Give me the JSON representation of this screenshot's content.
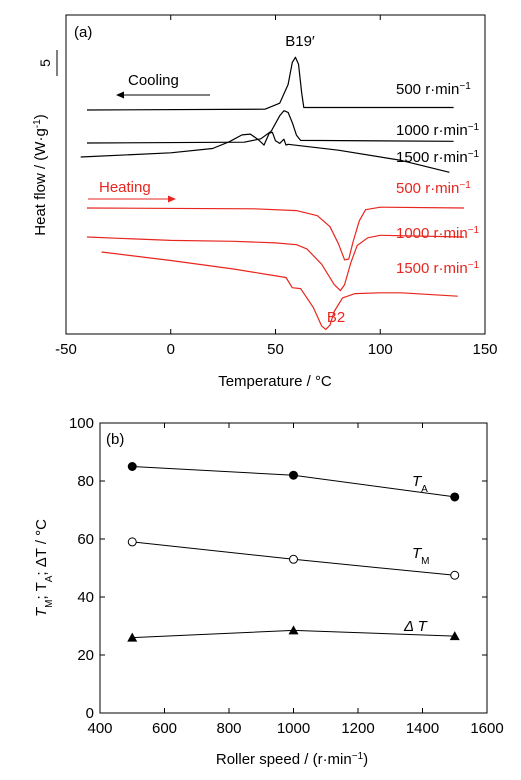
{
  "chart_data": [
    {
      "panel": "(a)",
      "type": "line",
      "xlabel_main": "Temperature / ",
      "xlabel_unit": "°C",
      "ylabel_main": "Heat flow / (W·g",
      "ylabel_sup": "-1",
      "ylabel_end": ")",
      "xlim": [
        -50,
        150
      ],
      "x_ticks": [
        "-50",
        "0",
        "50",
        "100",
        "150"
      ],
      "scale_bar_label": "5",
      "cooling_label": "Cooling",
      "heating_label": "Heating",
      "peak_labels": {
        "cooling": "B19′",
        "heating": "B2"
      },
      "colors": {
        "cooling": "#000000",
        "heating": "#e8261f"
      },
      "series": [
        {
          "name": "500 r·min",
          "sup": "−1",
          "group": "cooling",
          "points": [
            [
              -40,
              0
            ],
            [
              45,
              0.1
            ],
            [
              52,
              0.8
            ],
            [
              56,
              3.0
            ],
            [
              58,
              5.6
            ],
            [
              59.5,
              6.2
            ],
            [
              61,
              5.4
            ],
            [
              62.5,
              2.0
            ],
            [
              63.5,
              0.3
            ],
            [
              135,
              0.3
            ]
          ]
        },
        {
          "name": "1000 r·min",
          "sup": "−1",
          "group": "cooling",
          "points": [
            [
              -40,
              0
            ],
            [
              35,
              0.1
            ],
            [
              43,
              0.5
            ],
            [
              48,
              1.4
            ],
            [
              52,
              3.2
            ],
            [
              54,
              3.8
            ],
            [
              56,
              3.6
            ],
            [
              58,
              2.4
            ],
            [
              60,
              0.9
            ],
            [
              62,
              0.3
            ],
            [
              135,
              0.2
            ]
          ]
        },
        {
          "name": "1500 r·min",
          "sup": "−1",
          "group": "cooling",
          "points": [
            [
              -43,
              0
            ],
            [
              0,
              0.5
            ],
            [
              20,
              1.0
            ],
            [
              28,
              1.8
            ],
            [
              34,
              2.6
            ],
            [
              38,
              2.7
            ],
            [
              42,
              2.0
            ],
            [
              44.5,
              1.4
            ],
            [
              47,
              2.8
            ],
            [
              48.5,
              2.9
            ],
            [
              50,
              1.9
            ],
            [
              52,
              1.6
            ],
            [
              54,
              2.1
            ],
            [
              55,
              1.4
            ],
            [
              56,
              1.5
            ],
            [
              80,
              0.8
            ],
            [
              110,
              -0.4
            ],
            [
              133,
              -1.8
            ]
          ]
        },
        {
          "name": "500 r·min",
          "sup": "−1",
          "group": "heating",
          "points": [
            [
              -40,
              0
            ],
            [
              40,
              -0.1
            ],
            [
              60,
              -0.3
            ],
            [
              70,
              -0.9
            ],
            [
              76,
              -2.2
            ],
            [
              80,
              -4.2
            ],
            [
              83,
              -6.1
            ],
            [
              85,
              -6.0
            ],
            [
              87,
              -4.0
            ],
            [
              90,
              -1.5
            ],
            [
              93,
              -0.2
            ],
            [
              100,
              0.1
            ],
            [
              140,
              0
            ]
          ]
        },
        {
          "name": "1000 r·min",
          "sup": "−1",
          "group": "heating",
          "points": [
            [
              -40,
              0
            ],
            [
              0,
              -0.4
            ],
            [
              30,
              -0.5
            ],
            [
              50,
              -0.7
            ],
            [
              60,
              -0.9
            ],
            [
              65,
              -1.4
            ],
            [
              72,
              -3.2
            ],
            [
              78,
              -5.6
            ],
            [
              81,
              -6.3
            ],
            [
              83,
              -5.6
            ],
            [
              86,
              -3.0
            ],
            [
              89,
              -1.0
            ],
            [
              94,
              -0.1
            ],
            [
              100,
              0.2
            ],
            [
              140,
              0
            ]
          ]
        },
        {
          "name": "1500 r·min",
          "sup": "−1",
          "group": "heating",
          "points": [
            [
              -33,
              0
            ],
            [
              0,
              -1.0
            ],
            [
              30,
              -2.0
            ],
            [
              45,
              -2.6
            ],
            [
              55,
              -3.0
            ],
            [
              58,
              -4.2
            ],
            [
              62,
              -4.3
            ],
            [
              68,
              -6.5
            ],
            [
              72,
              -8.7
            ],
            [
              74,
              -9.1
            ],
            [
              76,
              -8.6
            ],
            [
              78,
              -7.0
            ],
            [
              82,
              -5.4
            ],
            [
              88,
              -4.9
            ],
            [
              100,
              -4.8
            ],
            [
              110,
              -4.8
            ],
            [
              137,
              -5.2
            ]
          ]
        }
      ]
    },
    {
      "panel": "(b)",
      "type": "line",
      "xlabel_main": "Roller speed / (r·min",
      "xlabel_sup": "−1",
      "xlabel_end": ")",
      "xlim": [
        400,
        1600
      ],
      "ylim": [
        0,
        100
      ],
      "x_ticks": [
        400,
        600,
        800,
        1000,
        1200,
        1400,
        1600
      ],
      "y_ticks": [
        0,
        20,
        40,
        60,
        80,
        100
      ],
      "ylabel_parts": [
        "T",
        "M",
        "; T",
        "A",
        "; ΔT / °C"
      ],
      "series": [
        {
          "name": "T",
          "sub": "A",
          "marker": "filled-circle",
          "x": [
            500,
            1000,
            1500
          ],
          "y": [
            85,
            82,
            74.5
          ]
        },
        {
          "name": "T",
          "sub": "M",
          "marker": "open-circle",
          "x": [
            500,
            1000,
            1500
          ],
          "y": [
            59,
            53,
            47.5
          ]
        },
        {
          "name": "Δ T",
          "sub": "",
          "marker": "filled-triangle",
          "x": [
            500,
            1000,
            1500
          ],
          "y": [
            26,
            28.5,
            26.5
          ]
        }
      ]
    }
  ]
}
